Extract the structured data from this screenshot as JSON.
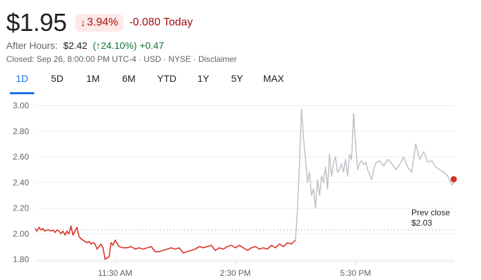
{
  "quote": {
    "price": "$1.95",
    "change_pct": "3.94%",
    "change_pct_icon": "arrow-down-icon",
    "change_abs": "-0.080 Today",
    "after_hours_label": "After Hours:",
    "after_hours_price": "$2.42",
    "after_hours_pct": "24.10%",
    "after_hours_pct_icon": "arrow-up-icon",
    "after_hours_change": "+0.47",
    "closed_line": "Closed: Sep 26, 8:00:00 PM UTC-4 · USD · NYSE · Disclaimer"
  },
  "colors": {
    "down": "#d93025",
    "down_text": "#a50e0e",
    "down_bg": "#fce8e6",
    "up_text": "#137333",
    "accent": "#1a73e8",
    "after_hours_line": "#bdc1c6"
  },
  "tabs": [
    {
      "label": "1D",
      "active": true
    },
    {
      "label": "5D",
      "active": false
    },
    {
      "label": "1M",
      "active": false
    },
    {
      "label": "6M",
      "active": false
    },
    {
      "label": "YTD",
      "active": false
    },
    {
      "label": "1Y",
      "active": false
    },
    {
      "label": "5Y",
      "active": false
    },
    {
      "label": "MAX",
      "active": false
    }
  ],
  "chart_data": {
    "type": "line",
    "ylim": [
      1.78,
      3.05
    ],
    "y_ticks": [
      "3.00",
      "2.80",
      "2.60",
      "2.40",
      "2.20",
      "2.00",
      "1.80"
    ],
    "y_tick_values": [
      3.0,
      2.8,
      2.6,
      2.4,
      2.2,
      2.0,
      1.8
    ],
    "x_ticks": [
      "11:30 AM",
      "2:30 PM",
      "5:30 PM"
    ],
    "x_tick_hours": [
      11.5,
      14.5,
      17.5
    ],
    "xlim_hours": [
      9.5,
      20.0
    ],
    "grid": true,
    "prev_close": {
      "label": "Prev close",
      "value_label": "$2.03",
      "value": 2.03
    },
    "series": [
      {
        "session": "regular",
        "x_hours": [
          9.5,
          9.55,
          9.6,
          9.65,
          9.7,
          9.75,
          9.8,
          9.85,
          9.9,
          9.95,
          10.0,
          10.05,
          10.1,
          10.15,
          10.2,
          10.25,
          10.3,
          10.35,
          10.4,
          10.45,
          10.5,
          10.55,
          10.6,
          10.65,
          10.7,
          10.75,
          10.8,
          10.85,
          10.9,
          10.95,
          11.0,
          11.05,
          11.1,
          11.15,
          11.2,
          11.25,
          11.3,
          11.35,
          11.4,
          11.45,
          11.5,
          11.6,
          11.7,
          11.8,
          11.9,
          12.0,
          12.1,
          12.2,
          12.3,
          12.4,
          12.5,
          12.6,
          12.7,
          12.8,
          12.9,
          13.0,
          13.1,
          13.2,
          13.3,
          13.4,
          13.5,
          13.6,
          13.7,
          13.8,
          13.9,
          14.0,
          14.1,
          14.2,
          14.3,
          14.4,
          14.5,
          14.6,
          14.7,
          14.8,
          14.9,
          15.0,
          15.1,
          15.2,
          15.3,
          15.4,
          15.5,
          15.6,
          15.7,
          15.8,
          15.9,
          16.0
        ],
        "values": [
          2.04,
          2.02,
          2.05,
          2.03,
          2.04,
          2.02,
          2.03,
          2.03,
          2.02,
          2.03,
          2.01,
          2.03,
          2.02,
          2.0,
          2.02,
          1.99,
          2.02,
          2.0,
          2.06,
          1.99,
          2.02,
          2.05,
          1.98,
          1.96,
          1.95,
          1.94,
          1.93,
          1.94,
          1.92,
          1.93,
          1.92,
          1.88,
          1.9,
          1.92,
          1.89,
          1.8,
          1.81,
          1.82,
          1.93,
          1.91,
          1.95,
          1.9,
          1.89,
          1.89,
          1.9,
          1.88,
          1.89,
          1.88,
          1.89,
          1.9,
          1.86,
          1.86,
          1.87,
          1.88,
          1.89,
          1.88,
          1.89,
          1.85,
          1.86,
          1.87,
          1.88,
          1.9,
          1.89,
          1.9,
          1.91,
          1.87,
          1.89,
          1.88,
          1.9,
          1.91,
          1.89,
          1.91,
          1.89,
          1.87,
          1.89,
          1.9,
          1.88,
          1.89,
          1.88,
          1.91,
          1.89,
          1.92,
          1.9,
          1.93,
          1.92,
          1.95
        ]
      },
      {
        "session": "after-hours",
        "x_hours": [
          16.0,
          16.05,
          16.1,
          16.15,
          16.2,
          16.25,
          16.3,
          16.35,
          16.4,
          16.45,
          16.5,
          16.55,
          16.6,
          16.65,
          16.7,
          16.75,
          16.8,
          16.85,
          16.9,
          16.95,
          17.0,
          17.05,
          17.1,
          17.15,
          17.2,
          17.25,
          17.3,
          17.35,
          17.4,
          17.45,
          17.5,
          17.55,
          17.6,
          17.65,
          17.7,
          17.75,
          17.8,
          17.85,
          17.9,
          17.95,
          18.0,
          18.1,
          18.2,
          18.3,
          18.4,
          18.5,
          18.6,
          18.7,
          18.8,
          18.9,
          19.0,
          19.1,
          19.2,
          19.3,
          19.4,
          19.5,
          19.6,
          19.7,
          19.8,
          19.9,
          20.0
        ],
        "values": [
          1.95,
          2.2,
          2.55,
          2.97,
          2.75,
          2.58,
          2.4,
          2.48,
          2.3,
          2.35,
          2.2,
          2.42,
          2.3,
          2.45,
          2.4,
          2.52,
          2.35,
          2.62,
          2.45,
          2.55,
          2.6,
          2.48,
          2.5,
          2.55,
          2.48,
          2.58,
          2.45,
          2.62,
          2.58,
          2.94,
          2.7,
          2.5,
          2.55,
          2.57,
          2.54,
          2.56,
          2.5,
          2.46,
          2.42,
          2.5,
          2.55,
          2.57,
          2.53,
          2.58,
          2.55,
          2.5,
          2.54,
          2.6,
          2.52,
          2.48,
          2.7,
          2.58,
          2.64,
          2.56,
          2.57,
          2.52,
          2.5,
          2.48,
          2.45,
          2.38,
          2.42
        ]
      }
    ]
  }
}
